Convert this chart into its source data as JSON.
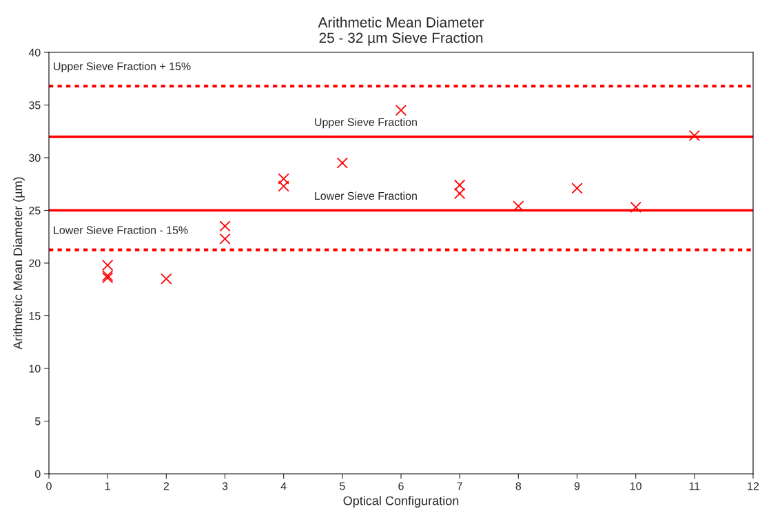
{
  "chart_data": {
    "type": "scatter",
    "title": "Arithmetic Mean Diameter\n25 - 32 µm Sieve Fraction",
    "xlabel": "Optical Configuration",
    "ylabel": "Arithmetic Mean Diameter (µm)",
    "series": [
      {
        "color": "#ff0000",
        "x": [
          1,
          1,
          1,
          2,
          3,
          3,
          4,
          4,
          5,
          6,
          7,
          7,
          8,
          9,
          10,
          11
        ],
        "values": [
          19.8,
          18.8,
          18.6,
          18.5,
          23.5,
          22.3,
          28.0,
          27.3,
          29.5,
          34.5,
          27.4,
          26.6,
          25.4,
          27.1,
          25.3,
          32.1
        ]
      }
    ],
    "marker": "cross",
    "xlim": [
      0,
      12
    ],
    "xticks": [
      0,
      1,
      2,
      3,
      4,
      5,
      6,
      7,
      8,
      9,
      10,
      11,
      12
    ],
    "ylim": [
      0,
      40
    ],
    "yticks": [
      0,
      5,
      10,
      15,
      20,
      25,
      30,
      35,
      40
    ],
    "grid": false,
    "legend": false,
    "ref_lines": [
      {
        "axis": "y",
        "value": 36.8,
        "label": "Upper Sieve Fraction + 15%",
        "color": "#ff0000",
        "line_style": "dotted"
      },
      {
        "axis": "y",
        "value": 32,
        "label": "Upper Sieve Fraction",
        "color": "#ff0000",
        "line_style": "solid"
      },
      {
        "axis": "y",
        "value": 25,
        "label": "Lower Sieve Fraction",
        "color": "#ff0000",
        "line_style": "solid"
      },
      {
        "axis": "y",
        "value": 21.25,
        "label": "Lower Sieve Fraction - 15%",
        "color": "#ff0000",
        "line_style": "dotted"
      }
    ]
  }
}
